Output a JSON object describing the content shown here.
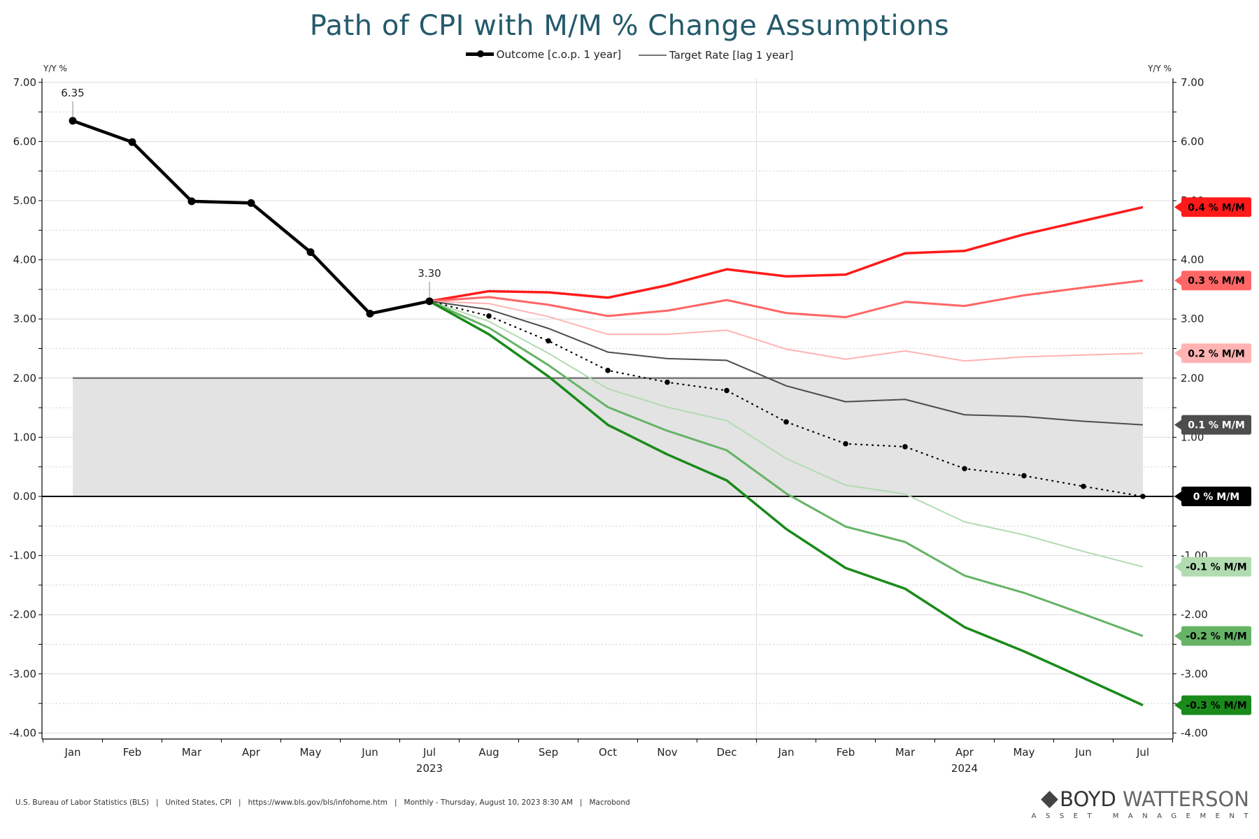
{
  "title": "Path of CPI with M/M % Change Assumptions",
  "legend": [
    {
      "label": "Outcome [c.o.p. 1 year]",
      "style": "outcome"
    },
    {
      "label": "Target Rate [lag 1 year]",
      "style": "target"
    }
  ],
  "footer": {
    "source": "U.S. Bureau of Labor Statistics (BLS)   |   United States, CPI   |   https://www.bls.gov/bls/infohome.htm   |   Monthly - Thursday, August 10, 2023 8:30 AM   |   Macrobond"
  },
  "logo": {
    "brand_bold": "BOYD",
    "brand_light": "WATTERSON",
    "subtitle": "ASSET MANAGEMENT"
  },
  "chart_data": {
    "type": "line",
    "title": "Path of CPI with M/M % Change Assumptions",
    "ylabel_left": "Y/Y %",
    "ylabel_right": "Y/Y %",
    "ylim": [
      -4,
      7
    ],
    "yticks": [
      7,
      6,
      5,
      4,
      3,
      2,
      1,
      0,
      -1,
      -2,
      -3,
      -4
    ],
    "ytick_labels": [
      "7.00",
      "6.00",
      "5.00",
      "4.00",
      "3.00",
      "2.00",
      "1.00",
      "0.00",
      "-1.00",
      "-2.00",
      "-3.00",
      "-4.00"
    ],
    "grid": true,
    "legend_position": "top-center",
    "x": [
      "Jan",
      "Feb",
      "Mar",
      "Apr",
      "May",
      "Jun",
      "Jul",
      "Aug",
      "Sep",
      "Oct",
      "Nov",
      "Dec",
      "Jan",
      "Feb",
      "Mar",
      "Apr",
      "May",
      "Jun",
      "Jul"
    ],
    "year_labels": [
      {
        "label": "2023",
        "at_index": 6
      },
      {
        "label": "2024",
        "at_index": 15
      }
    ],
    "year_break_after_index": 11,
    "target_band": {
      "name": "Target Rate [lag 1 year]",
      "value": 2.0,
      "from_index": 0,
      "to_index": 18,
      "color": "#777777",
      "fill": "#e3e3e3"
    },
    "zero_line": 0,
    "annotations": [
      {
        "index": 0,
        "value": 6.35,
        "text": "6.35"
      },
      {
        "index": 6,
        "value": 3.3,
        "text": "3.30"
      }
    ],
    "outcome": {
      "name": "Outcome [c.o.p. 1 year]",
      "color": "#000000",
      "start_index": 0,
      "values": [
        6.35,
        5.99,
        4.99,
        4.96,
        4.13,
        3.09,
        3.3
      ]
    },
    "series": [
      {
        "name": "0.4 % M/M",
        "label": "0.4 % M/M",
        "color": "#ff1a1a",
        "label_bg": "#ff1a1a",
        "label_fg": "#000000",
        "weight": 3.5,
        "dotted": false,
        "start_index": 6,
        "values": [
          3.3,
          3.47,
          3.45,
          3.36,
          3.57,
          3.84,
          3.72,
          3.75,
          4.11,
          4.15,
          4.43,
          4.66,
          4.89
        ]
      },
      {
        "name": "0.3 % M/M",
        "label": "0.3 % M/M",
        "color": "#ff6666",
        "label_bg": "#ff6666",
        "label_fg": "#000000",
        "weight": 3,
        "dotted": false,
        "start_index": 6,
        "values": [
          3.3,
          3.37,
          3.24,
          3.05,
          3.14,
          3.32,
          3.1,
          3.03,
          3.29,
          3.22,
          3.4,
          3.53,
          3.65
        ]
      },
      {
        "name": "0.2 % M/M",
        "label": "0.2 % M/M",
        "color": "#ffb3b3",
        "label_bg": "#ffb3b3",
        "label_fg": "#000000",
        "weight": 2,
        "dotted": false,
        "start_index": 6,
        "values": [
          3.3,
          3.26,
          3.04,
          2.74,
          2.74,
          2.81,
          2.49,
          2.32,
          2.46,
          2.29,
          2.36,
          2.39,
          2.42
        ]
      },
      {
        "name": "0.1 % M/M",
        "label": "0.1 % M/M",
        "color": "#4d4d4d",
        "label_bg": "#4d4d4d",
        "label_fg": "#ffffff",
        "weight": 2,
        "dotted": false,
        "start_index": 6,
        "values": [
          3.3,
          3.16,
          2.84,
          2.44,
          2.33,
          2.3,
          1.87,
          1.6,
          1.64,
          1.38,
          1.35,
          1.27,
          1.21
        ]
      },
      {
        "name": "0 % M/M",
        "label": "0 % M/M",
        "color": "#000000",
        "label_bg": "#000000",
        "label_fg": "#ffffff",
        "weight": 2,
        "dotted": true,
        "start_index": 6,
        "values": [
          3.3,
          3.05,
          2.63,
          2.13,
          1.93,
          1.79,
          1.26,
          0.89,
          0.84,
          0.47,
          0.35,
          0.17,
          0.0
        ]
      },
      {
        "name": "-0.1 % M/M",
        "label": "-0.1 % M/M",
        "color": "#b2dbb2",
        "label_bg": "#b2dbb2",
        "label_fg": "#000000",
        "weight": 2,
        "dotted": false,
        "start_index": 6,
        "values": [
          3.3,
          2.96,
          2.42,
          1.82,
          1.51,
          1.28,
          0.64,
          0.19,
          0.04,
          -0.43,
          -0.65,
          -0.93,
          -1.19
        ]
      },
      {
        "name": "-0.2 % M/M",
        "label": "-0.2 % M/M",
        "color": "#66b366",
        "label_bg": "#66b366",
        "label_fg": "#000000",
        "weight": 3,
        "dotted": false,
        "start_index": 6,
        "values": [
          3.3,
          2.85,
          2.22,
          1.51,
          1.11,
          0.78,
          0.05,
          -0.51,
          -0.77,
          -1.34,
          -1.63,
          -1.99,
          -2.36
        ]
      },
      {
        "name": "-0.3 % M/M",
        "label": "-0.3 % M/M",
        "color": "#1a8a1a",
        "label_bg": "#1a8a1a",
        "label_fg": "#000000",
        "weight": 3.5,
        "dotted": false,
        "start_index": 6,
        "values": [
          3.3,
          2.74,
          2.03,
          1.21,
          0.71,
          0.27,
          -0.55,
          -1.21,
          -1.56,
          -2.21,
          -2.62,
          -3.07,
          -3.53
        ]
      }
    ]
  }
}
